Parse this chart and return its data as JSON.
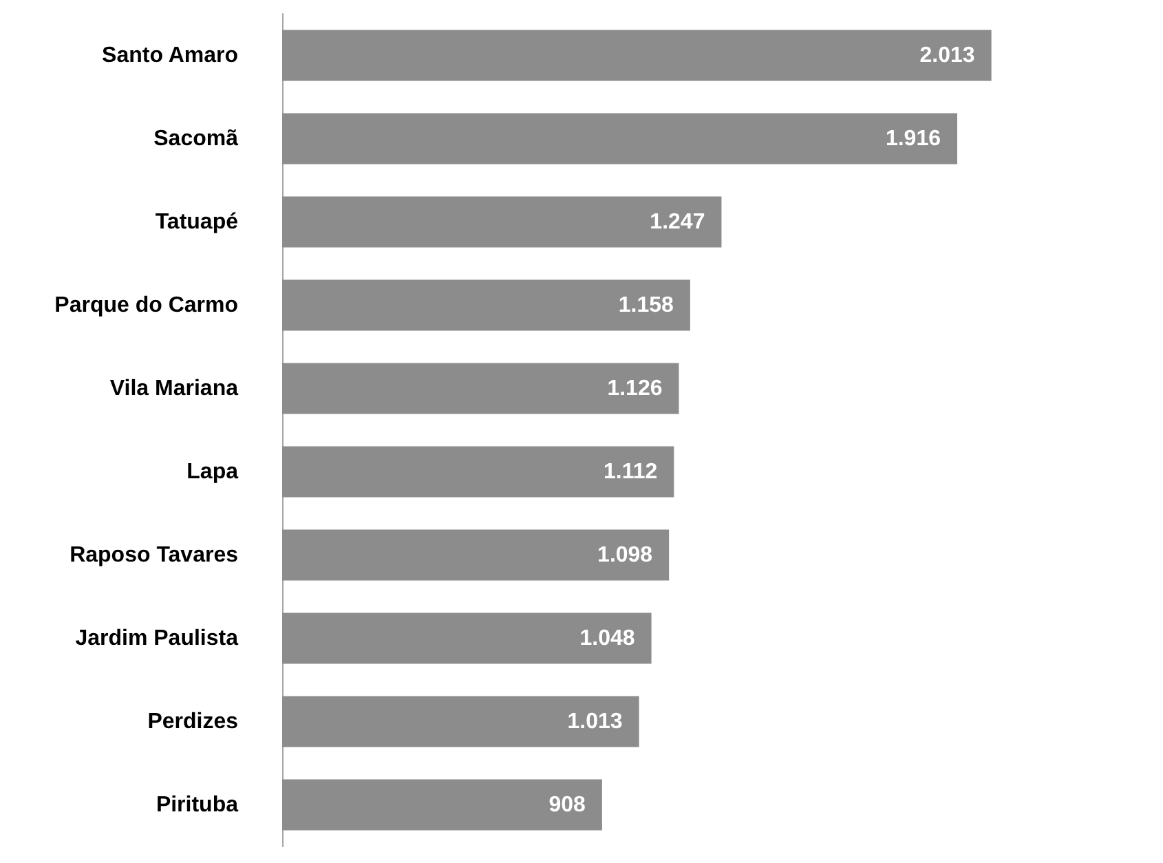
{
  "chart_data": {
    "type": "bar",
    "orientation": "horizontal",
    "categories": [
      "Santo Amaro",
      "Sacomã",
      "Tatuapé",
      "Parque do Carmo",
      "Vila Mariana",
      "Lapa",
      "Raposo Tavares",
      "Jardim Paulista",
      "Perdizes",
      "Pirituba"
    ],
    "series": [
      {
        "color": "#8c8c8c",
        "values": [
          2013,
          1916,
          1247,
          1158,
          1126,
          1112,
          1098,
          1048,
          1013,
          908
        ],
        "value_labels": [
          "2.013",
          "1.916",
          "1.247",
          "1.158",
          "1.126",
          "1.112",
          "1.098",
          "1.048",
          "1.013",
          "908"
        ]
      }
    ],
    "tick_labels": "y"
  }
}
